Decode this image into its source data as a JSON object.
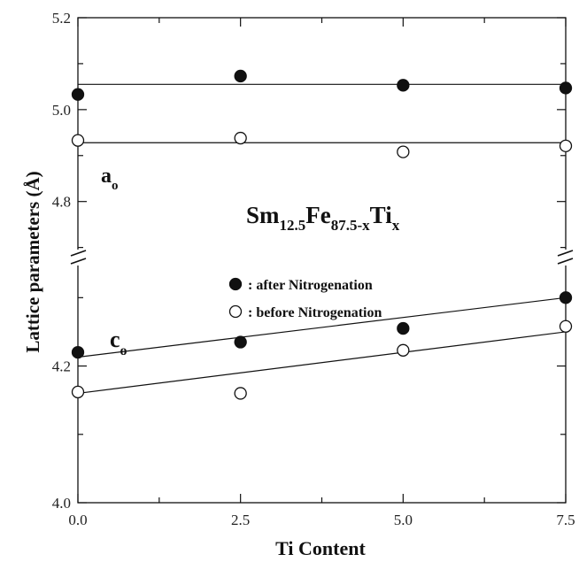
{
  "chart_data": {
    "type": "scatter",
    "xlabel": "Ti Content",
    "ylabel": "Lattice parameters (Å)",
    "xlim": [
      0.0,
      7.5
    ],
    "x_ticks": [
      "0.0",
      "2.5",
      "5.0",
      "7.5"
    ],
    "y_ticks_upper": [
      "5.2",
      "5.0",
      "4.8"
    ],
    "y_ticks_lower": [
      "4.2",
      "4.0"
    ],
    "y_axis_break": true,
    "annotations": {
      "formula": {
        "base1": "Sm",
        "sub1": "12.5",
        "base2": "Fe",
        "sub2": "87.5-x",
        "base3": "Ti",
        "sub3": "x"
      },
      "a_label": {
        "base": "a",
        "sub": "o"
      },
      "c_label": {
        "base": "c",
        "sub": "o"
      }
    },
    "legend": [
      {
        "marker": "filled",
        "label": ": after    Nitrogenation"
      },
      {
        "marker": "open",
        "label": ": before Nitrogenation"
      }
    ],
    "upper_panel": {
      "ylim": [
        4.68,
        5.2
      ],
      "series": [
        {
          "marker": "filled",
          "x": [
            0.0,
            2.5,
            5.0,
            7.5
          ],
          "y": [
            5.033,
            5.073,
            5.053,
            5.047
          ],
          "fit": [
            5.055,
            5.055
          ]
        },
        {
          "marker": "open",
          "x": [
            0.0,
            2.5,
            5.0,
            7.5
          ],
          "y": [
            4.933,
            4.938,
            4.908,
            4.921
          ],
          "fit": [
            4.928,
            4.928
          ]
        }
      ]
    },
    "lower_panel": {
      "ylim": [
        4.0,
        4.36
      ],
      "series": [
        {
          "marker": "filled",
          "x": [
            0.0,
            2.5,
            5.0,
            7.5
          ],
          "y": [
            4.22,
            4.235,
            4.255,
            4.3
          ],
          "fit": [
            4.213,
            4.3
          ]
        },
        {
          "marker": "open",
          "x": [
            0.0,
            2.5,
            5.0,
            7.5
          ],
          "y": [
            4.162,
            4.16,
            4.223,
            4.258
          ],
          "fit": [
            4.16,
            4.25
          ]
        }
      ]
    }
  }
}
